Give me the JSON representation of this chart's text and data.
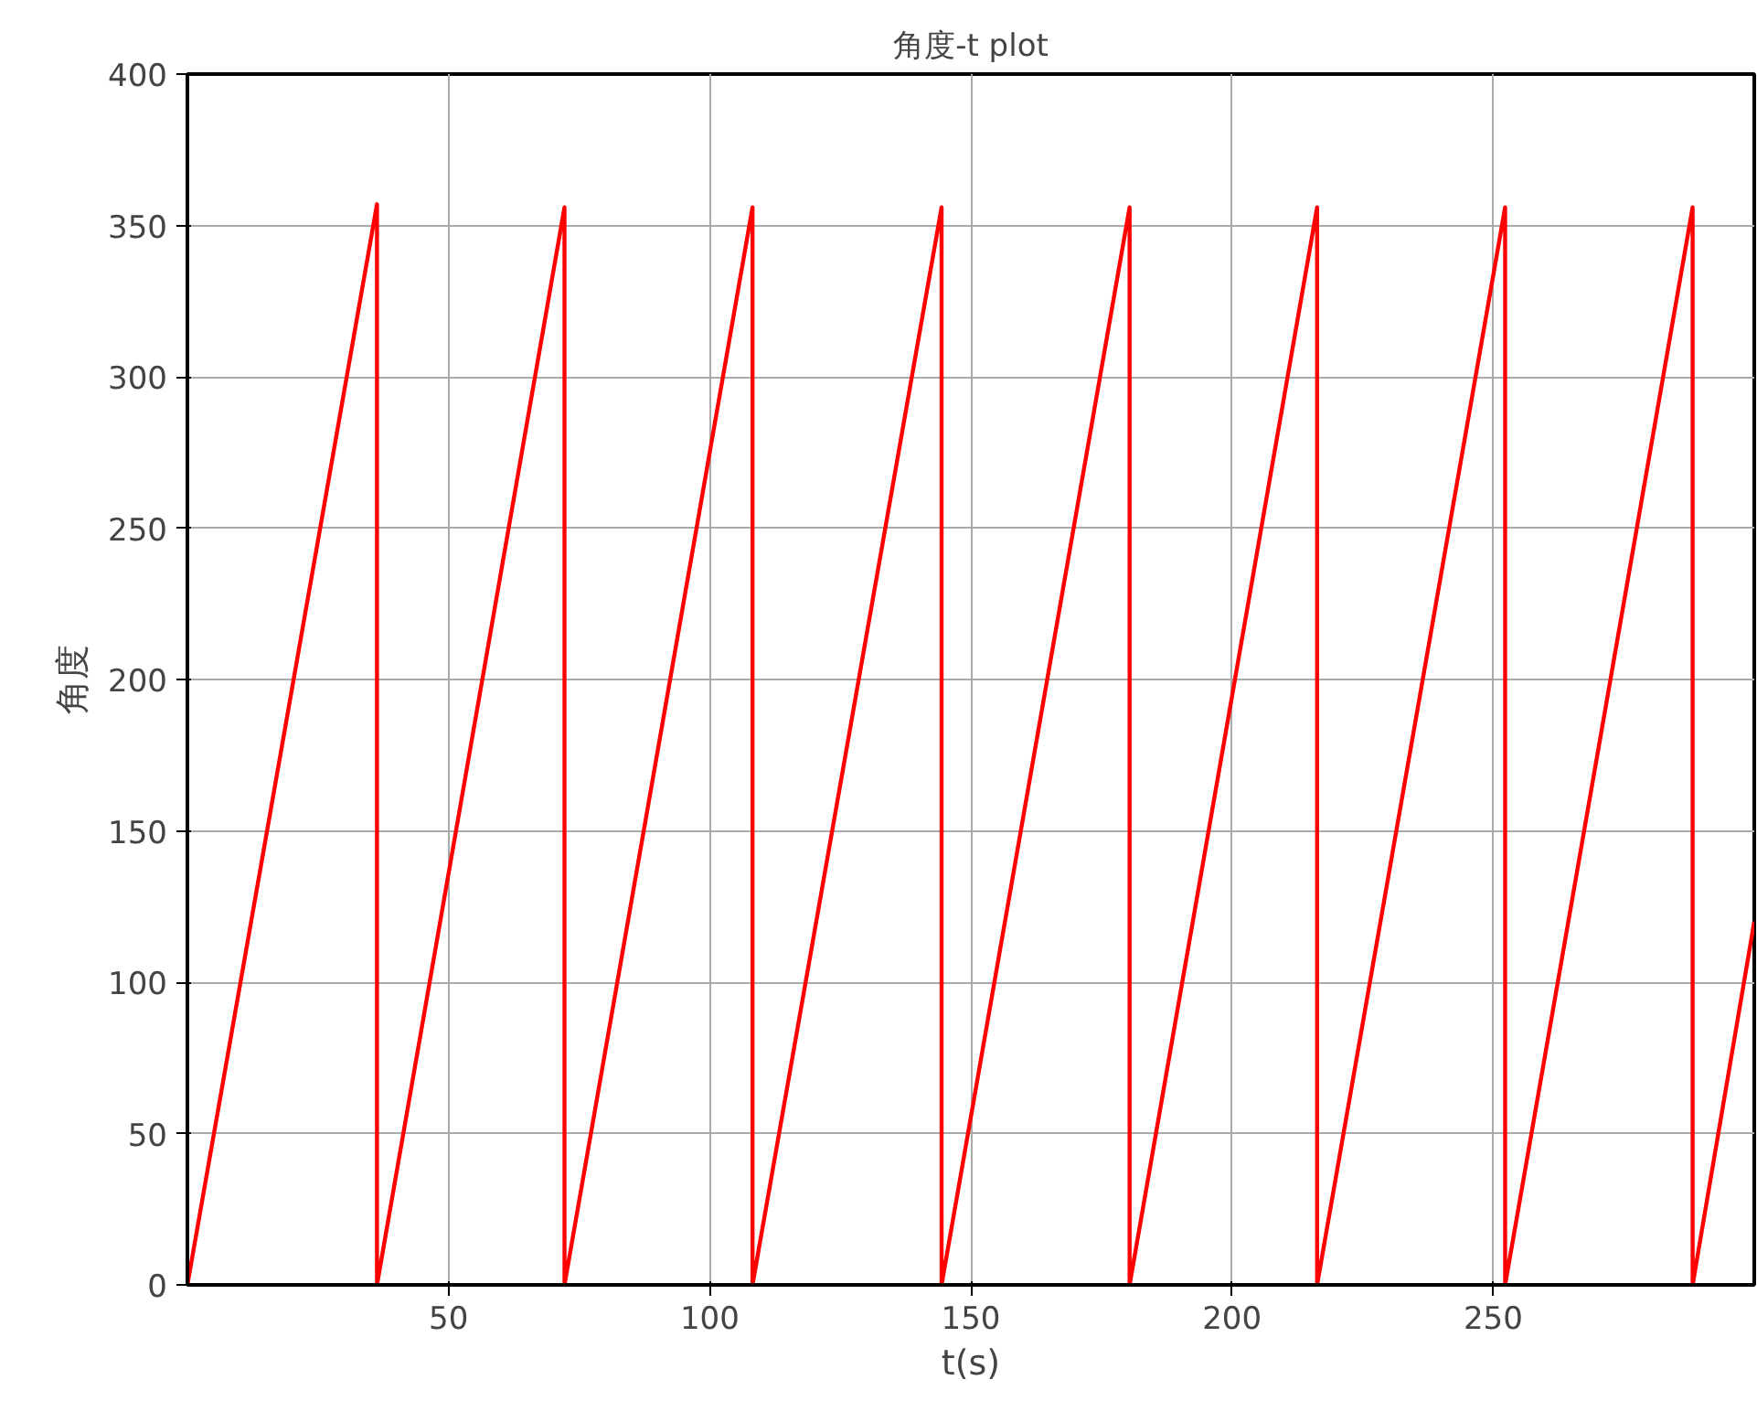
{
  "chart_data": {
    "type": "line",
    "title": "角度-t plot",
    "xlabel": "t(s)",
    "ylabel": "角度",
    "xlim": [
      0,
      300
    ],
    "ylim": [
      0,
      400
    ],
    "xticks": [
      50,
      100,
      150,
      200,
      250
    ],
    "yticks": [
      0,
      50,
      100,
      150,
      200,
      250,
      300,
      350,
      400
    ],
    "grid": true,
    "marker": "none",
    "line_style": "solid",
    "series": [
      {
        "color": "#ff0000",
        "x": [
          0,
          36.3,
          36.3,
          72.2,
          72.2,
          108.2,
          108.2,
          144.4,
          144.4,
          180.4,
          180.4,
          216.3,
          216.3,
          252.3,
          252.3,
          288.2,
          288.2,
          300
        ],
        "values": [
          0,
          357,
          0,
          356,
          0,
          356,
          0,
          356,
          0,
          356,
          0,
          356,
          0,
          356,
          0,
          356,
          0,
          120
        ]
      }
    ]
  }
}
